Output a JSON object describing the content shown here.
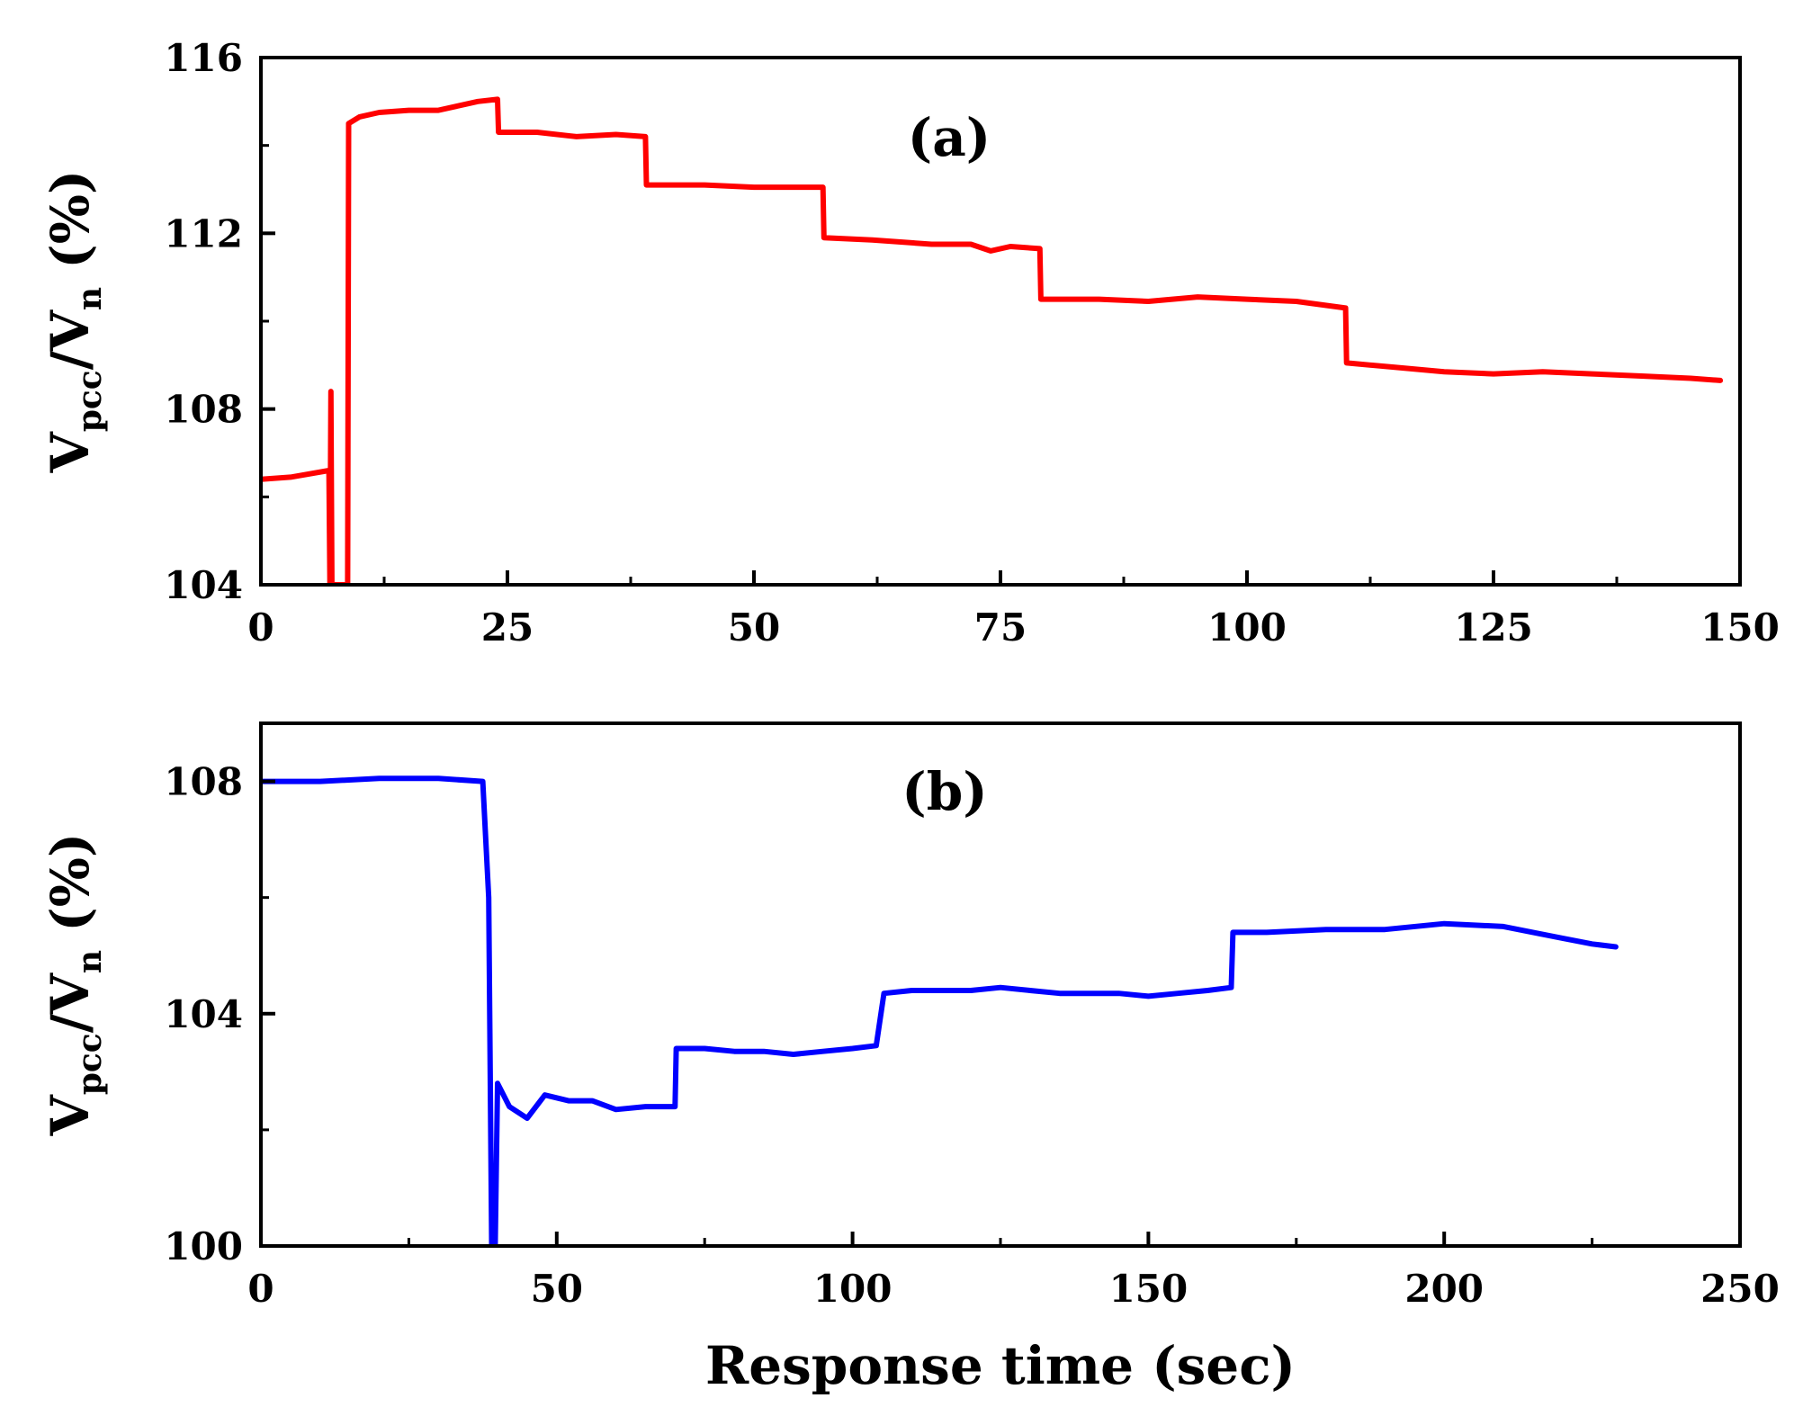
{
  "chart_data": [
    {
      "type": "line",
      "panel_label": "(a)",
      "color": "#ff0000",
      "xlabel": "",
      "ylabel": {
        "v1": "V",
        "sub1": "pcc",
        "slash": "/",
        "v2": "V",
        "sub2": "n",
        "unit": " (%)"
      },
      "xlim": [
        0,
        150
      ],
      "ylim": [
        104,
        116
      ],
      "xticks": [
        0,
        25,
        50,
        75,
        100,
        125,
        150
      ],
      "yticks": [
        104,
        108,
        112,
        116
      ],
      "xtick_labels": [
        "0",
        "25",
        "50",
        "75",
        "100",
        "125",
        "150"
      ],
      "ytick_labels": [
        "104",
        "108",
        "112",
        "116"
      ],
      "x_minor_step": 12.5,
      "y_minor_step": 2,
      "series": [
        {
          "name": "Vpcc/Vn",
          "points": [
            [
              0,
              106.4
            ],
            [
              3,
              106.45
            ],
            [
              6.9,
              106.6
            ],
            [
              7.0,
              104
            ],
            [
              7.1,
              108.4
            ],
            [
              7.2,
              104
            ],
            [
              8.8,
              104
            ],
            [
              8.9,
              114.5
            ],
            [
              10,
              114.65
            ],
            [
              12,
              114.75
            ],
            [
              15,
              114.8
            ],
            [
              18,
              114.8
            ],
            [
              20,
              114.9
            ],
            [
              22,
              115.0
            ],
            [
              24,
              115.05
            ],
            [
              24.1,
              114.3
            ],
            [
              28,
              114.3
            ],
            [
              32,
              114.2
            ],
            [
              36,
              114.25
            ],
            [
              39,
              114.2
            ],
            [
              39.1,
              113.1
            ],
            [
              45,
              113.1
            ],
            [
              50,
              113.05
            ],
            [
              55,
              113.05
            ],
            [
              57,
              113.05
            ],
            [
              57.1,
              111.9
            ],
            [
              62,
              111.85
            ],
            [
              68,
              111.75
            ],
            [
              72,
              111.75
            ],
            [
              74,
              111.6
            ],
            [
              76,
              111.7
            ],
            [
              79,
              111.65
            ],
            [
              79.1,
              110.5
            ],
            [
              85,
              110.5
            ],
            [
              90,
              110.45
            ],
            [
              95,
              110.55
            ],
            [
              100,
              110.5
            ],
            [
              105,
              110.45
            ],
            [
              110,
              110.3
            ],
            [
              110.1,
              109.05
            ],
            [
              115,
              108.95
            ],
            [
              120,
              108.85
            ],
            [
              125,
              108.8
            ],
            [
              130,
              108.85
            ],
            [
              135,
              108.8
            ],
            [
              140,
              108.75
            ],
            [
              145,
              108.7
            ],
            [
              148,
              108.65
            ]
          ]
        }
      ]
    },
    {
      "type": "line",
      "panel_label": "(b)",
      "color": "#0000ff",
      "xlabel": "Response time (sec)",
      "ylabel": {
        "v1": "V",
        "sub1": "pcc",
        "slash": "/",
        "v2": "V",
        "sub2": "n",
        "unit": " (%)"
      },
      "xlim": [
        0,
        250
      ],
      "ylim": [
        100,
        109
      ],
      "xticks": [
        0,
        50,
        100,
        150,
        200,
        250
      ],
      "yticks": [
        100,
        104,
        108
      ],
      "xtick_labels": [
        "0",
        "50",
        "100",
        "150",
        "200",
        "250"
      ],
      "ytick_labels": [
        "100",
        "104",
        "108"
      ],
      "x_minor_step": 25,
      "y_minor_step": 2,
      "series": [
        {
          "name": "Vpcc/Vn",
          "points": [
            [
              0,
              108.0
            ],
            [
              10,
              108.0
            ],
            [
              20,
              108.05
            ],
            [
              30,
              108.05
            ],
            [
              37.5,
              108.0
            ],
            [
              38.5,
              106.0
            ],
            [
              39,
              100.0
            ],
            [
              39.6,
              100.0
            ],
            [
              40,
              102.8
            ],
            [
              42,
              102.4
            ],
            [
              45,
              102.2
            ],
            [
              48,
              102.6
            ],
            [
              52,
              102.5
            ],
            [
              56,
              102.5
            ],
            [
              60,
              102.35
            ],
            [
              65,
              102.4
            ],
            [
              70,
              102.4
            ],
            [
              70.2,
              103.4
            ],
            [
              75,
              103.4
            ],
            [
              80,
              103.35
            ],
            [
              85,
              103.35
            ],
            [
              90,
              103.3
            ],
            [
              95,
              103.35
            ],
            [
              100,
              103.4
            ],
            [
              104,
              103.45
            ],
            [
              105.3,
              104.35
            ],
            [
              110,
              104.4
            ],
            [
              115,
              104.4
            ],
            [
              120,
              104.4
            ],
            [
              125,
              104.45
            ],
            [
              130,
              104.4
            ],
            [
              135,
              104.35
            ],
            [
              140,
              104.35
            ],
            [
              145,
              104.35
            ],
            [
              150,
              104.3
            ],
            [
              155,
              104.35
            ],
            [
              160,
              104.4
            ],
            [
              164,
              104.45
            ],
            [
              164.3,
              105.4
            ],
            [
              170,
              105.4
            ],
            [
              180,
              105.45
            ],
            [
              190,
              105.45
            ],
            [
              200,
              105.55
            ],
            [
              210,
              105.5
            ],
            [
              215,
              105.4
            ],
            [
              220,
              105.3
            ],
            [
              225,
              105.2
            ],
            [
              229,
              105.15
            ]
          ]
        }
      ]
    }
  ]
}
